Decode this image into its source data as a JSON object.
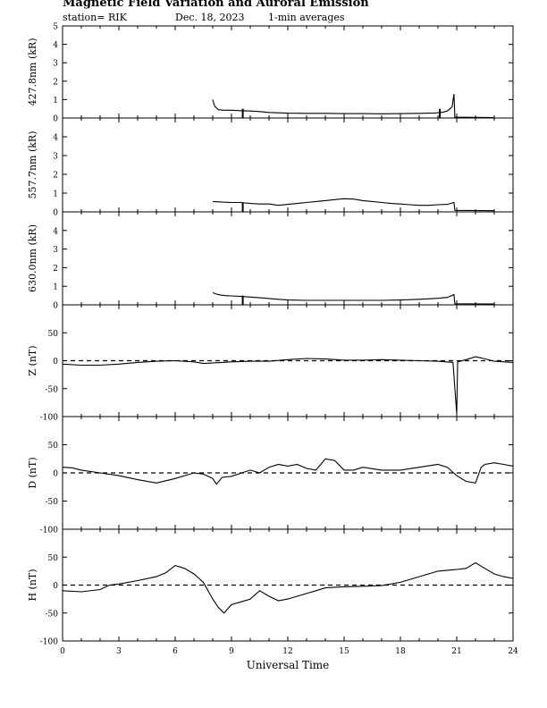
{
  "header": {
    "title": "Magnetic Field Variation and Auroral Emission",
    "station": "station= RIK",
    "date": "Dec. 18, 2023",
    "averaging": "1-min averages"
  },
  "chart_data": [
    {
      "type": "line",
      "ylabel": "427.8nm (kR)",
      "ylim": [
        0,
        5
      ],
      "yticks": [
        0,
        1,
        2,
        3,
        4,
        5
      ],
      "xlim": [
        0,
        24
      ],
      "series": [
        {
          "points": [
            [
              8.0,
              1.0
            ],
            [
              8.1,
              0.65
            ],
            [
              8.3,
              0.45
            ],
            [
              8.6,
              0.42
            ],
            [
              9.0,
              0.42
            ],
            [
              9.5,
              0.4
            ],
            [
              10.0,
              0.38
            ],
            [
              10.5,
              0.35
            ],
            [
              11.0,
              0.3
            ],
            [
              11.5,
              0.28
            ],
            [
              12.0,
              0.26
            ],
            [
              13.0,
              0.25
            ],
            [
              14.0,
              0.25
            ],
            [
              15.0,
              0.24
            ],
            [
              16.0,
              0.24
            ],
            [
              17.0,
              0.23
            ],
            [
              18.0,
              0.24
            ],
            [
              19.0,
              0.25
            ],
            [
              19.8,
              0.27
            ],
            [
              20.2,
              0.3
            ],
            [
              20.5,
              0.38
            ],
            [
              20.75,
              0.6
            ],
            [
              20.85,
              1.3
            ],
            [
              20.9,
              0.05
            ],
            [
              23.0,
              0.02
            ]
          ],
          "spikes": [
            [
              9.6,
              0.5
            ],
            [
              20.1,
              0.5
            ]
          ]
        }
      ]
    },
    {
      "type": "line",
      "ylabel": "557.7nm (kR)",
      "ylim": [
        0,
        5
      ],
      "yticks": [
        0,
        1,
        2,
        3,
        4
      ],
      "xlim": [
        0,
        24
      ],
      "series": [
        {
          "points": [
            [
              8.0,
              0.55
            ],
            [
              8.5,
              0.52
            ],
            [
              9.0,
              0.5
            ],
            [
              9.5,
              0.5
            ],
            [
              10.0,
              0.45
            ],
            [
              10.5,
              0.42
            ],
            [
              11.0,
              0.42
            ],
            [
              11.5,
              0.35
            ],
            [
              12.0,
              0.4
            ],
            [
              12.5,
              0.45
            ],
            [
              13.0,
              0.5
            ],
            [
              13.5,
              0.55
            ],
            [
              14.0,
              0.6
            ],
            [
              14.5,
              0.65
            ],
            [
              15.0,
              0.7
            ],
            [
              15.5,
              0.68
            ],
            [
              16.0,
              0.6
            ],
            [
              16.5,
              0.55
            ],
            [
              17.0,
              0.5
            ],
            [
              17.5,
              0.45
            ],
            [
              18.0,
              0.42
            ],
            [
              18.5,
              0.38
            ],
            [
              19.0,
              0.35
            ],
            [
              19.5,
              0.35
            ],
            [
              20.0,
              0.38
            ],
            [
              20.5,
              0.4
            ],
            [
              20.85,
              0.5
            ],
            [
              20.9,
              0.08
            ],
            [
              23.0,
              0.06
            ]
          ],
          "spikes": [
            [
              9.6,
              0.5
            ]
          ]
        }
      ]
    },
    {
      "type": "line",
      "ylabel": "630.0nm (kR)",
      "ylim": [
        0,
        5
      ],
      "yticks": [
        0,
        1,
        2,
        3,
        4
      ],
      "xlim": [
        0,
        24
      ],
      "series": [
        {
          "points": [
            [
              8.0,
              0.65
            ],
            [
              8.3,
              0.55
            ],
            [
              8.6,
              0.5
            ],
            [
              9.0,
              0.48
            ],
            [
              9.5,
              0.45
            ],
            [
              10.0,
              0.42
            ],
            [
              10.5,
              0.38
            ],
            [
              11.0,
              0.34
            ],
            [
              11.5,
              0.3
            ],
            [
              12.0,
              0.26
            ],
            [
              13.0,
              0.24
            ],
            [
              14.0,
              0.24
            ],
            [
              15.0,
              0.24
            ],
            [
              16.0,
              0.24
            ],
            [
              17.0,
              0.24
            ],
            [
              18.0,
              0.26
            ],
            [
              19.0,
              0.3
            ],
            [
              20.0,
              0.35
            ],
            [
              20.5,
              0.4
            ],
            [
              20.85,
              0.55
            ],
            [
              20.9,
              0.06
            ],
            [
              23.0,
              0.05
            ]
          ],
          "spikes": [
            [
              9.6,
              0.5
            ]
          ]
        }
      ]
    },
    {
      "type": "line",
      "ylabel": "Z (nT)",
      "ylim": [
        -100,
        100
      ],
      "yticks": [
        -100,
        -50,
        0,
        50
      ],
      "xlim": [
        0,
        24
      ],
      "series": [
        {
          "points": [
            [
              0,
              -6
            ],
            [
              1,
              -8
            ],
            [
              2,
              -8
            ],
            [
              3,
              -6
            ],
            [
              4,
              -3
            ],
            [
              5,
              -1
            ],
            [
              6,
              0
            ],
            [
              7,
              -2
            ],
            [
              7.5,
              -5
            ],
            [
              8.5,
              -3
            ],
            [
              9,
              -2
            ],
            [
              10,
              -1
            ],
            [
              11,
              -1
            ],
            [
              12,
              2
            ],
            [
              13,
              4
            ],
            [
              14,
              3
            ],
            [
              15,
              1
            ],
            [
              16,
              1
            ],
            [
              17,
              2
            ],
            [
              18,
              1
            ],
            [
              19,
              0
            ],
            [
              20,
              -1
            ],
            [
              20.8,
              -3
            ],
            [
              21.0,
              -95
            ],
            [
              21.05,
              -2
            ],
            [
              21.5,
              2
            ],
            [
              22,
              7
            ],
            [
              22.3,
              5
            ],
            [
              23,
              -1
            ],
            [
              24,
              -3
            ]
          ]
        }
      ]
    },
    {
      "type": "line",
      "ylabel": "D (nT)",
      "ylim": [
        -100,
        100
      ],
      "yticks": [
        -100,
        -50,
        0,
        50
      ],
      "xlim": [
        0,
        24
      ],
      "series": [
        {
          "points": [
            [
              0,
              10
            ],
            [
              0.5,
              9
            ],
            [
              1,
              5
            ],
            [
              2,
              0
            ],
            [
              3,
              -5
            ],
            [
              4,
              -12
            ],
            [
              5,
              -18
            ],
            [
              6,
              -10
            ],
            [
              6.5,
              -5
            ],
            [
              7,
              0
            ],
            [
              7.5,
              -2
            ],
            [
              8,
              -10
            ],
            [
              8.2,
              -20
            ],
            [
              8.5,
              -8
            ],
            [
              9,
              -6
            ],
            [
              10,
              5
            ],
            [
              10.5,
              0
            ],
            [
              11,
              10
            ],
            [
              11.5,
              15
            ],
            [
              12,
              12
            ],
            [
              12.5,
              15
            ],
            [
              13,
              8
            ],
            [
              13.5,
              5
            ],
            [
              14,
              25
            ],
            [
              14.5,
              22
            ],
            [
              15,
              5
            ],
            [
              15.5,
              5
            ],
            [
              16,
              10
            ],
            [
              17,
              5
            ],
            [
              18,
              5
            ],
            [
              19,
              10
            ],
            [
              20,
              15
            ],
            [
              20.5,
              10
            ],
            [
              21,
              -5
            ],
            [
              21.5,
              -15
            ],
            [
              22,
              -18
            ],
            [
              22.3,
              10
            ],
            [
              22.5,
              15
            ],
            [
              23,
              18
            ],
            [
              23.5,
              15
            ],
            [
              24,
              12
            ]
          ]
        }
      ]
    },
    {
      "type": "line",
      "ylabel": "H (nT)",
      "ylim": [
        -100,
        100
      ],
      "yticks": [
        -100,
        -50,
        0,
        50
      ],
      "xlim": [
        0,
        24
      ],
      "xlabel": "Universal Time",
      "xticks": [
        0,
        3,
        6,
        9,
        12,
        15,
        18,
        21,
        24
      ],
      "series": [
        {
          "points": [
            [
              0,
              -10
            ],
            [
              1,
              -12
            ],
            [
              2,
              -8
            ],
            [
              2.5,
              0
            ],
            [
              3,
              2
            ],
            [
              4,
              8
            ],
            [
              5,
              15
            ],
            [
              5.5,
              22
            ],
            [
              6,
              35
            ],
            [
              6.5,
              30
            ],
            [
              7,
              20
            ],
            [
              7.5,
              5
            ],
            [
              8,
              -25
            ],
            [
              8.3,
              -40
            ],
            [
              8.6,
              -50
            ],
            [
              9,
              -35
            ],
            [
              9.5,
              -30
            ],
            [
              10,
              -25
            ],
            [
              10.5,
              -10
            ],
            [
              11,
              -20
            ],
            [
              11.5,
              -28
            ],
            [
              12,
              -25
            ],
            [
              12.5,
              -20
            ],
            [
              13,
              -15
            ],
            [
              13.5,
              -10
            ],
            [
              14,
              -5
            ],
            [
              15,
              -3
            ],
            [
              16,
              -2
            ],
            [
              17,
              -1
            ],
            [
              18,
              5
            ],
            [
              19,
              15
            ],
            [
              20,
              25
            ],
            [
              21,
              28
            ],
            [
              21.5,
              30
            ],
            [
              22,
              40
            ],
            [
              22.5,
              30
            ],
            [
              23,
              20
            ],
            [
              23.5,
              15
            ],
            [
              24,
              12
            ]
          ]
        }
      ]
    }
  ]
}
